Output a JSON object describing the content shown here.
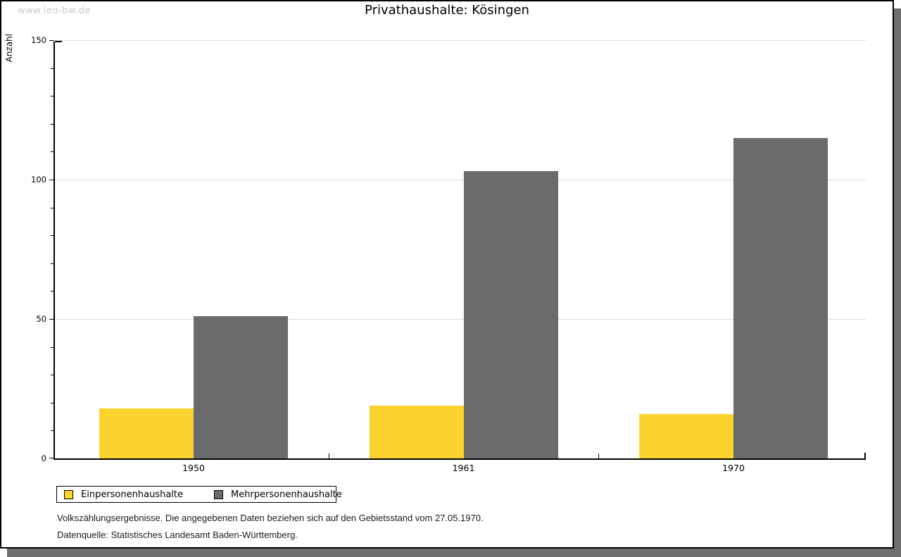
{
  "watermark": "www.leo-bw.de",
  "title": "Privathaushalte: Kösingen",
  "chart_data": {
    "type": "bar",
    "title": "Privathaushalte: Kösingen",
    "categories": [
      "1950",
      "1961",
      "1970"
    ],
    "series": [
      {
        "name": "Einpersonenhaushalte",
        "color": "#fcd32d",
        "values": [
          18,
          19,
          16
        ]
      },
      {
        "name": "Mehrpersonenhaushalte",
        "color": "#6b6b6b",
        "values": [
          51,
          103,
          115
        ]
      }
    ],
    "ylabel": "Anzahl",
    "ylim": [
      0,
      150
    ],
    "yticks": [
      0,
      50,
      100,
      150
    ],
    "minor_tick_step": 10,
    "grid": true,
    "legend_position": "bottom-left"
  },
  "footer": {
    "line1": "Volkszählungsergebnisse. Die angegebenen Daten beziehen sich auf den Gebietsstand vom 27.05.1970.",
    "line2": "Datenquelle: Statistisches Landesamt Baden-Württemberg."
  },
  "colors": {
    "einpersonen_bar": "#fcd32d",
    "mehrpersonen_bar": "#6b6b6b",
    "grid": "#dcdcdc",
    "axis": "#000000",
    "watermark": "#c9c9c9",
    "shadow": "#6f6f6f"
  }
}
